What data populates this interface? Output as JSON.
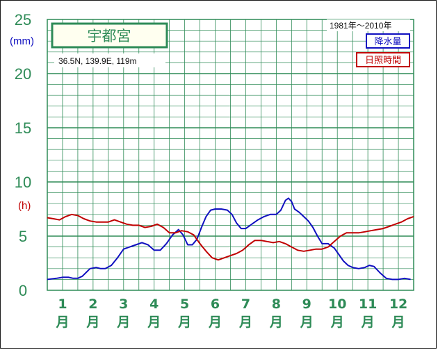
{
  "chart_data": {
    "type": "line",
    "title": "宇都宮",
    "location": "36.5N,  139.9E,  119m",
    "period": "1981年〜2010年",
    "categories": [
      "1",
      "2",
      "3",
      "4",
      "5",
      "6",
      "7",
      "8",
      "9",
      "10",
      "11",
      "12"
    ],
    "month_suffix": "月",
    "y_ticks": [
      "0",
      "5",
      "10",
      "15",
      "20",
      "25"
    ],
    "ylim": [
      0,
      25
    ],
    "y_unit_left": "(mm)",
    "y_unit_right": "(h)",
    "grid": true,
    "legend_position": "top-right",
    "series": [
      {
        "name": "降水量",
        "color": "#1010c0",
        "x": [
          1.0,
          1.3,
          1.5,
          1.7,
          1.85,
          2.0,
          2.15,
          2.4,
          2.6,
          2.75,
          2.9,
          3.1,
          3.3,
          3.5,
          3.7,
          3.9,
          4.1,
          4.3,
          4.5,
          4.7,
          4.9,
          5.1,
          5.3,
          5.45,
          5.6,
          5.75,
          5.9,
          6.05,
          6.2,
          6.35,
          6.5,
          6.7,
          6.9,
          7.05,
          7.2,
          7.35,
          7.5,
          7.7,
          7.9,
          8.1,
          8.3,
          8.5,
          8.65,
          8.8,
          8.9,
          9.0,
          9.1,
          9.25,
          9.4,
          9.55,
          9.7,
          9.85,
          10.0,
          10.2,
          10.4,
          10.55,
          10.7,
          10.85,
          11.0,
          11.2,
          11.4,
          11.55,
          11.7,
          11.9,
          12.1,
          12.3,
          12.5,
          12.7,
          12.9
        ],
        "values": [
          1.0,
          1.1,
          1.2,
          1.2,
          1.1,
          1.1,
          1.3,
          2.0,
          2.1,
          2.0,
          2.0,
          2.3,
          3.0,
          3.8,
          4.0,
          4.2,
          4.4,
          4.2,
          3.7,
          3.7,
          4.3,
          5.1,
          5.6,
          5.1,
          4.2,
          4.2,
          4.7,
          5.8,
          6.8,
          7.4,
          7.5,
          7.5,
          7.4,
          7.0,
          6.2,
          5.7,
          5.7,
          6.1,
          6.5,
          6.8,
          7.0,
          7.0,
          7.4,
          8.3,
          8.5,
          8.2,
          7.5,
          7.2,
          6.8,
          6.4,
          5.8,
          5.0,
          4.3,
          4.3,
          3.9,
          3.3,
          2.7,
          2.3,
          2.1,
          2.0,
          2.1,
          2.3,
          2.2,
          1.6,
          1.1,
          1.0,
          1.0,
          1.1,
          1.0
        ]
      },
      {
        "name": "日照時間",
        "color": "#c00000",
        "x": [
          1.0,
          1.2,
          1.4,
          1.6,
          1.8,
          2.0,
          2.2,
          2.4,
          2.6,
          2.8,
          3.0,
          3.2,
          3.4,
          3.6,
          3.8,
          4.0,
          4.2,
          4.4,
          4.6,
          4.8,
          5.0,
          5.2,
          5.4,
          5.6,
          5.8,
          6.0,
          6.2,
          6.4,
          6.6,
          6.8,
          7.0,
          7.2,
          7.4,
          7.6,
          7.8,
          8.0,
          8.2,
          8.4,
          8.6,
          8.8,
          9.0,
          9.2,
          9.4,
          9.6,
          9.8,
          10.0,
          10.2,
          10.4,
          10.6,
          10.8,
          11.0,
          11.2,
          11.4,
          11.6,
          11.8,
          12.0,
          12.2,
          12.4,
          12.6,
          12.8,
          13.0
        ],
        "values": [
          6.7,
          6.6,
          6.5,
          6.8,
          7.0,
          6.9,
          6.6,
          6.4,
          6.3,
          6.3,
          6.3,
          6.5,
          6.3,
          6.1,
          6.0,
          6.0,
          5.8,
          5.9,
          6.1,
          5.8,
          5.3,
          5.3,
          5.5,
          5.4,
          5.1,
          4.3,
          3.6,
          3.0,
          2.8,
          3.0,
          3.2,
          3.4,
          3.7,
          4.2,
          4.6,
          4.6,
          4.5,
          4.4,
          4.5,
          4.3,
          4.0,
          3.7,
          3.6,
          3.7,
          3.8,
          3.8,
          4.0,
          4.5,
          5.0,
          5.3,
          5.3,
          5.3,
          5.4,
          5.5,
          5.6,
          5.7,
          5.9,
          6.1,
          6.3,
          6.6,
          6.8
        ]
      }
    ]
  }
}
